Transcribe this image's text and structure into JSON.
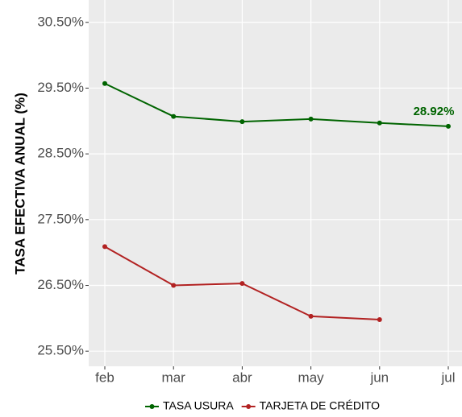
{
  "chart_data": {
    "type": "line",
    "y_label": "TASA EFECTIVA ANUAL (%)",
    "categories": [
      "feb",
      "mar",
      "abr",
      "may",
      "jun",
      "jul"
    ],
    "series": [
      {
        "name": "TASA USURA",
        "color": "#006400",
        "values": [
          29.57,
          29.07,
          28.99,
          29.03,
          28.97,
          28.92
        ],
        "value_labels": [
          null,
          null,
          null,
          null,
          null,
          "28.92%"
        ]
      },
      {
        "name": "TARJETA DE CRÉDITO",
        "color": "#b22222",
        "values": [
          27.09,
          26.5,
          26.53,
          26.03,
          25.98,
          null
        ]
      }
    ],
    "ylim": [
      25.27,
      30.84
    ],
    "yticks": [
      {
        "value": 25.5,
        "label": "25.50%"
      },
      {
        "value": 26.5,
        "label": "26.50%"
      },
      {
        "value": 27.5,
        "label": "27.50%"
      },
      {
        "value": 28.5,
        "label": "28.50%"
      },
      {
        "value": 29.5,
        "label": "29.50%"
      },
      {
        "value": 30.5,
        "label": "30.50%"
      }
    ],
    "grid": true,
    "legend": "bottom"
  }
}
